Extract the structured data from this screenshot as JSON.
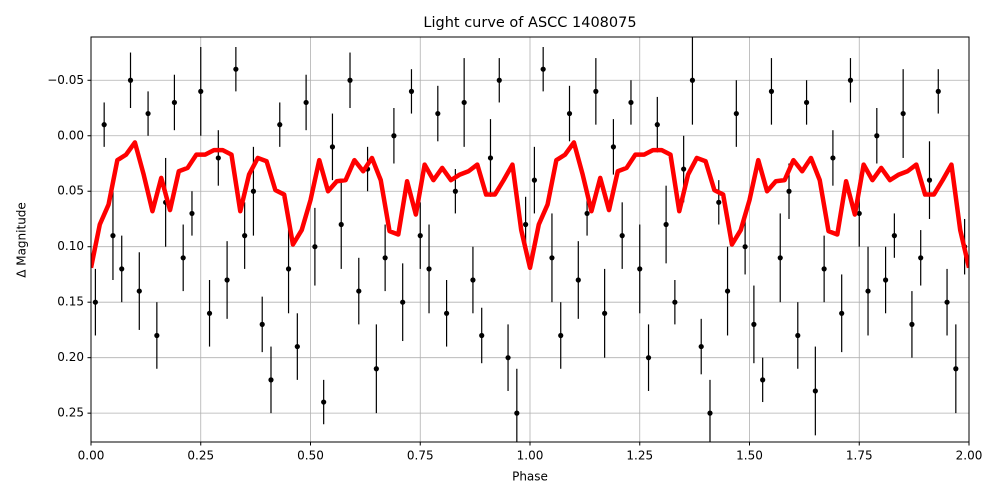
{
  "chart_data": {
    "type": "errorbar_line",
    "title": "Light curve of ASCC 1408075",
    "x_label": "Phase",
    "y_label": "Δ Magnitude",
    "xlim": [
      0,
      2
    ],
    "ylim": [
      -0.089,
      0.276
    ],
    "y_inverted": true,
    "grid": true,
    "xticks": [
      {
        "value": 0,
        "label": "0.00"
      },
      {
        "value": 0.25,
        "label": "0.25"
      },
      {
        "value": 0.5,
        "label": "0.50"
      },
      {
        "value": 0.75,
        "label": "0.75"
      },
      {
        "value": 1,
        "label": "1.00"
      },
      {
        "value": 1.25,
        "label": "1.25"
      },
      {
        "value": 1.5,
        "label": "1.50"
      },
      {
        "value": 1.75,
        "label": "1.75"
      },
      {
        "value": 2,
        "label": "2.00"
      }
    ],
    "yticks": [
      {
        "value": -0.05,
        "label": "−0.05"
      },
      {
        "value": 0,
        "label": "0.00"
      },
      {
        "value": 0.05,
        "label": "0.05"
      },
      {
        "value": 0.1,
        "label": "0.10"
      },
      {
        "value": 0.15,
        "label": "0.15"
      },
      {
        "value": 0.2,
        "label": "0.20"
      },
      {
        "value": 0.25,
        "label": "0.25"
      }
    ],
    "points": {
      "color": "#000000",
      "x": [
        0.01,
        0.03,
        0.05,
        0.07,
        0.09,
        0.11,
        0.13,
        0.15,
        0.17,
        0.19,
        0.21,
        0.23,
        0.25,
        0.27,
        0.29,
        0.31,
        0.33,
        0.35,
        0.37,
        0.39,
        0.41,
        0.43,
        0.45,
        0.47,
        0.49,
        0.51,
        0.53,
        0.55,
        0.57,
        0.59,
        0.61,
        0.63,
        0.65,
        0.67,
        0.69,
        0.71,
        0.73,
        0.75,
        0.77,
        0.79,
        0.81,
        0.83,
        0.85,
        0.87,
        0.89,
        0.91,
        0.93,
        0.95,
        0.97,
        0.99,
        1.01,
        1.03,
        1.05,
        1.07,
        1.09,
        1.11,
        1.13,
        1.15,
        1.17,
        1.19,
        1.21,
        1.23,
        1.25,
        1.27,
        1.29,
        1.31,
        1.33,
        1.35,
        1.37,
        1.39,
        1.41,
        1.43,
        1.45,
        1.47,
        1.49,
        1.51,
        1.53,
        1.55,
        1.57,
        1.59,
        1.61,
        1.63,
        1.65,
        1.67,
        1.69,
        1.71,
        1.73,
        1.75,
        1.77,
        1.79,
        1.81,
        1.83,
        1.85,
        1.87,
        1.89,
        1.91,
        1.93,
        1.95,
        1.97,
        1.99
      ],
      "values": [
        0.15,
        -0.01,
        0.09,
        0.12,
        -0.05,
        0.14,
        -0.02,
        0.18,
        0.06,
        -0.03,
        0.11,
        0.07,
        -0.04,
        0.16,
        0.02,
        0.13,
        -0.06,
        0.09,
        0.05,
        0.17,
        0.22,
        -0.01,
        0.12,
        0.19,
        -0.03,
        0.1,
        0.24,
        0.01,
        0.08,
        -0.05,
        0.14,
        0.03,
        0.21,
        0.11,
        0.0,
        0.15,
        -0.04,
        0.09,
        0.12,
        -0.02,
        0.16,
        0.05,
        -0.03,
        0.13,
        0.18,
        0.02,
        -0.05,
        0.2,
        0.25,
        0.08,
        0.04,
        -0.06,
        0.11,
        0.18,
        -0.02,
        0.13,
        0.07,
        -0.04,
        0.16,
        0.01,
        0.09,
        -0.03,
        0.12,
        0.2,
        -0.01,
        0.08,
        0.15,
        0.03,
        -0.05,
        0.19,
        0.25,
        0.06,
        0.14,
        -0.02,
        0.1,
        0.17,
        0.22,
        -0.04,
        0.11,
        0.05,
        0.18,
        -0.03,
        0.23,
        0.12,
        0.02,
        0.16,
        -0.05,
        0.07,
        0.14,
        0.0,
        0.13,
        0.09,
        -0.02,
        0.17,
        0.11,
        0.04,
        -0.04,
        0.15,
        0.21,
        0.1
      ],
      "errors": [
        0.03,
        0.02,
        0.04,
        0.03,
        0.025,
        0.035,
        0.02,
        0.03,
        0.04,
        0.025,
        0.03,
        0.02,
        0.04,
        0.03,
        0.025,
        0.035,
        0.02,
        0.03,
        0.04,
        0.025,
        0.03,
        0.02,
        0.04,
        0.03,
        0.025,
        0.035,
        0.02,
        0.03,
        0.04,
        0.025,
        0.03,
        0.02,
        0.04,
        0.03,
        0.025,
        0.035,
        0.02,
        0.03,
        0.04,
        0.025,
        0.03,
        0.02,
        0.04,
        0.03,
        0.025,
        0.035,
        0.02,
        0.03,
        0.04,
        0.025,
        0.03,
        0.02,
        0.04,
        0.03,
        0.025,
        0.035,
        0.02,
        0.03,
        0.04,
        0.025,
        0.03,
        0.02,
        0.04,
        0.03,
        0.025,
        0.035,
        0.02,
        0.03,
        0.04,
        0.025,
        0.03,
        0.02,
        0.04,
        0.03,
        0.025,
        0.035,
        0.02,
        0.03,
        0.04,
        0.025,
        0.03,
        0.02,
        0.04,
        0.03,
        0.025,
        0.035,
        0.02,
        0.03,
        0.04,
        0.025,
        0.03,
        0.02,
        0.04,
        0.03,
        0.025,
        0.035,
        0.02,
        0.03,
        0.04,
        0.025
      ]
    },
    "curve": {
      "color": "#ff0000",
      "x": [
        0,
        0.02,
        0.04,
        0.06,
        0.08,
        0.1,
        0.12,
        0.14,
        0.16,
        0.18,
        0.2,
        0.22,
        0.24,
        0.26,
        0.28,
        0.3,
        0.32,
        0.34,
        0.36,
        0.38,
        0.4,
        0.42,
        0.44,
        0.46,
        0.48,
        0.5,
        0.52,
        0.54,
        0.56,
        0.58,
        0.6,
        0.62,
        0.64,
        0.66,
        0.68,
        0.7,
        0.72,
        0.74,
        0.76,
        0.78,
        0.8,
        0.82,
        0.84,
        0.86,
        0.88,
        0.9,
        0.92,
        0.94,
        0.96,
        0.98,
        1,
        1.02,
        1.04,
        1.06,
        1.08,
        1.1,
        1.12,
        1.14,
        1.16,
        1.18,
        1.2,
        1.22,
        1.24,
        1.26,
        1.28,
        1.3,
        1.32,
        1.34,
        1.36,
        1.38,
        1.4,
        1.42,
        1.44,
        1.46,
        1.48,
        1.5,
        1.52,
        1.54,
        1.56,
        1.58,
        1.6,
        1.62,
        1.64,
        1.66,
        1.68,
        1.7,
        1.72,
        1.74,
        1.76,
        1.78,
        1.8,
        1.82,
        1.84,
        1.86,
        1.88,
        1.9,
        1.92,
        1.94,
        1.96,
        1.98,
        2
      ],
      "values": [
        0.119,
        0.08,
        0.062,
        0.022,
        0.017,
        0.006,
        0.035,
        0.068,
        0.038,
        0.067,
        0.032,
        0.029,
        0.017,
        0.017,
        0.013,
        0.013,
        0.017,
        0.068,
        0.035,
        0.02,
        0.023,
        0.049,
        0.053,
        0.098,
        0.085,
        0.058,
        0.022,
        0.05,
        0.041,
        0.04,
        0.022,
        0.032,
        0.02,
        0.04,
        0.086,
        0.089,
        0.041,
        0.071,
        0.026,
        0.04,
        0.029,
        0.04,
        0.035,
        0.032,
        0.026,
        0.053,
        0.053,
        0.04,
        0.026,
        0.085,
        0.119,
        0.08,
        0.062,
        0.022,
        0.017,
        0.006,
        0.035,
        0.068,
        0.038,
        0.067,
        0.032,
        0.029,
        0.017,
        0.017,
        0.013,
        0.013,
        0.017,
        0.068,
        0.035,
        0.02,
        0.023,
        0.049,
        0.053,
        0.098,
        0.085,
        0.058,
        0.022,
        0.05,
        0.041,
        0.04,
        0.022,
        0.032,
        0.02,
        0.04,
        0.086,
        0.089,
        0.041,
        0.071,
        0.026,
        0.04,
        0.029,
        0.04,
        0.035,
        0.032,
        0.026,
        0.053,
        0.053,
        0.04,
        0.026,
        0.085,
        0.119
      ]
    }
  }
}
